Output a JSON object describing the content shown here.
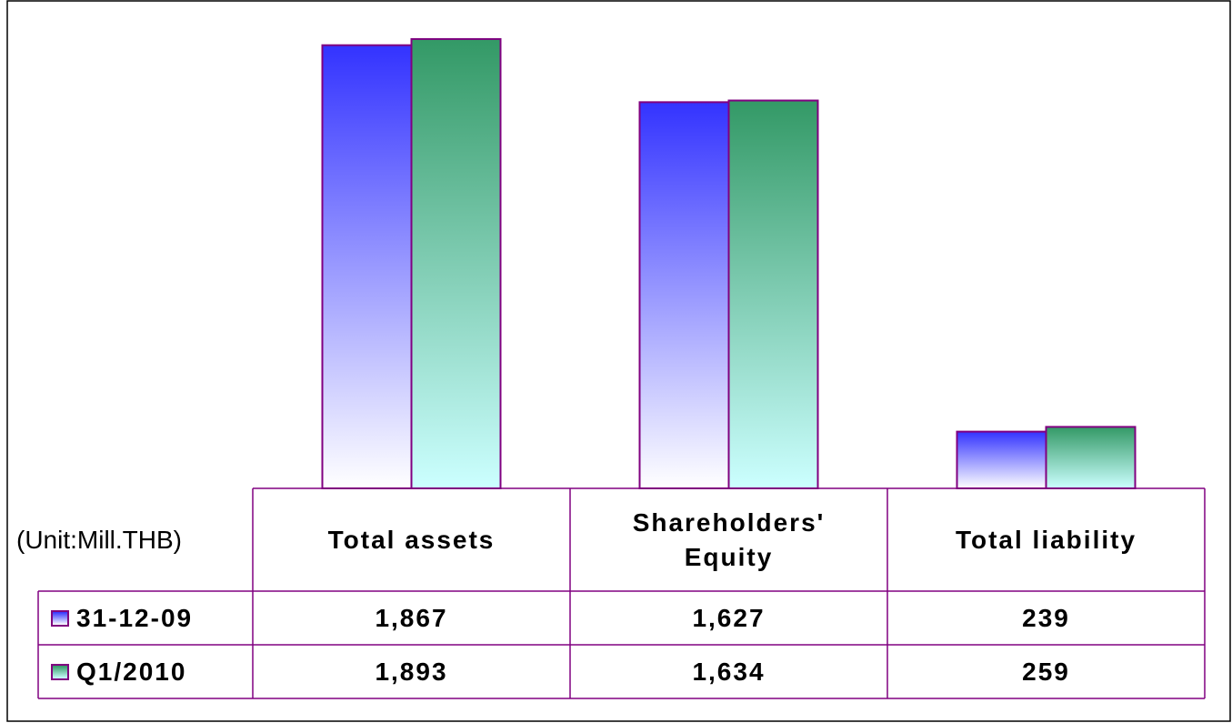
{
  "chart_data": {
    "type": "bar",
    "unit_label": "(Unit:Mill.THB)",
    "categories": [
      "Total assets",
      "Shareholders' Equity",
      "Total liability"
    ],
    "series": [
      {
        "name": "31-12-09",
        "color": "#3333ff",
        "gradient_end": "#ffffff",
        "values": [
          1867,
          1627,
          239
        ],
        "value_labels": [
          "1,867",
          "1,627",
          "239"
        ]
      },
      {
        "name": "Q1/2010",
        "color": "#339966",
        "gradient_end": "#ccffff",
        "values": [
          1893,
          1634,
          259
        ],
        "value_labels": [
          "1,893",
          "1,634",
          "259"
        ]
      }
    ],
    "ylim": [
      0,
      2000
    ],
    "data_table": true
  }
}
